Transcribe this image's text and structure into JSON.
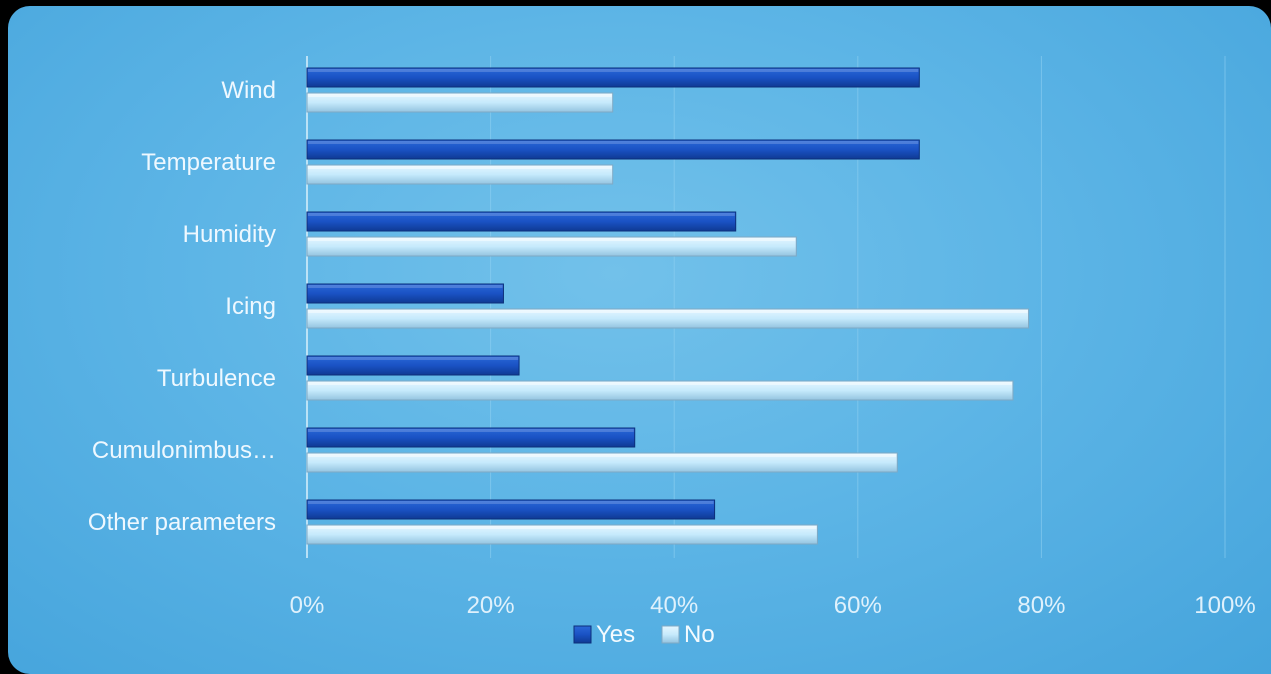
{
  "chart_data": {
    "type": "bar",
    "orientation": "horizontal",
    "categories": [
      "Wind",
      "Temperature",
      "Humidity",
      "Icing",
      "Turbulence",
      "Cumulonimbus…",
      "Other parameters"
    ],
    "series": [
      {
        "name": "Yes",
        "color": "#1a52c4",
        "values": [
          0.667,
          0.667,
          0.467,
          0.214,
          0.231,
          0.357,
          0.444
        ]
      },
      {
        "name": "No",
        "color": "#c6eafc",
        "values": [
          0.333,
          0.333,
          0.533,
          0.786,
          0.769,
          0.643,
          0.556
        ]
      }
    ],
    "xlim": [
      0,
      1
    ],
    "xticks": [
      0,
      0.2,
      0.4,
      0.6,
      0.8,
      1.0
    ],
    "xtick_labels": [
      "0%",
      "20%",
      "40%",
      "60%",
      "80%",
      "100%"
    ],
    "grid": "vertical",
    "legend": "bottom-center",
    "title": "",
    "xlabel": "",
    "ylabel": ""
  }
}
